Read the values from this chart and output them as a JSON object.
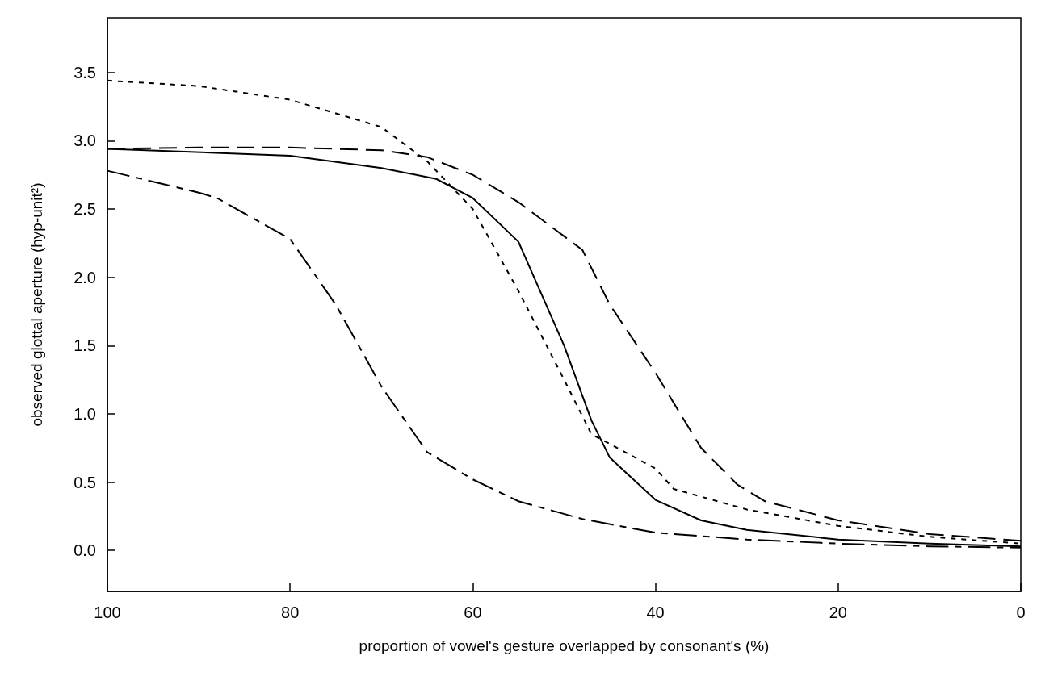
{
  "chart_data": {
    "type": "line",
    "xlabel": "proportion of vowel's gesture overlapped by consonant's (%)",
    "ylabel": "observed glottal aperture (hyp-unit²)",
    "xlim": [
      100,
      0
    ],
    "xticks": [
      100,
      80,
      60,
      40,
      20,
      0
    ],
    "ylim": [
      -0.3,
      3.9
    ],
    "yticks": [
      {
        "value": 0,
        "label": "0.0"
      },
      0.5,
      {
        "value": 1,
        "label": "1.0"
      },
      1.5,
      {
        "value": 2,
        "label": "2.0"
      },
      2.5,
      {
        "value": 3,
        "label": "3.0"
      },
      3.5
    ],
    "grid": false,
    "marker": "none",
    "series": [
      {
        "color": "#000000",
        "line_style": "dashed",
        "x": [
          100,
          90,
          80,
          70,
          65,
          60,
          55,
          50,
          47,
          45,
          40,
          38,
          30,
          20,
          10,
          0
        ],
        "values": [
          3.44,
          3.4,
          3.3,
          3.1,
          2.85,
          2.5,
          1.9,
          1.25,
          0.85,
          0.78,
          0.6,
          0.45,
          0.3,
          0.18,
          0.1,
          0.05
        ]
      },
      {
        "color": "#000000",
        "line_style": "dashed",
        "x": [
          100,
          90,
          80,
          70,
          65,
          60,
          55,
          50,
          48,
          45,
          40,
          35,
          31,
          28,
          20,
          10,
          0
        ],
        "values": [
          2.94,
          2.95,
          2.95,
          2.93,
          2.88,
          2.75,
          2.55,
          2.3,
          2.2,
          1.8,
          1.3,
          0.75,
          0.48,
          0.36,
          0.22,
          0.12,
          0.07
        ]
      },
      {
        "color": "#000000",
        "line_style": "solid",
        "x": [
          100,
          80,
          70,
          64,
          60,
          55,
          50,
          47,
          45,
          40,
          35,
          30,
          20,
          10,
          0
        ],
        "values": [
          2.94,
          2.89,
          2.8,
          2.72,
          2.58,
          2.26,
          1.5,
          0.95,
          0.68,
          0.37,
          0.22,
          0.15,
          0.08,
          0.05,
          0.03
        ]
      },
      {
        "color": "#000000",
        "line_style": "dashed",
        "x": [
          100,
          90,
          88,
          80,
          75,
          70,
          65,
          60,
          55,
          48,
          40,
          30,
          20,
          10,
          0
        ],
        "values": [
          2.78,
          2.62,
          2.58,
          2.28,
          1.8,
          1.2,
          0.72,
          0.52,
          0.36,
          0.23,
          0.13,
          0.08,
          0.05,
          0.03,
          0.02
        ]
      }
    ]
  }
}
